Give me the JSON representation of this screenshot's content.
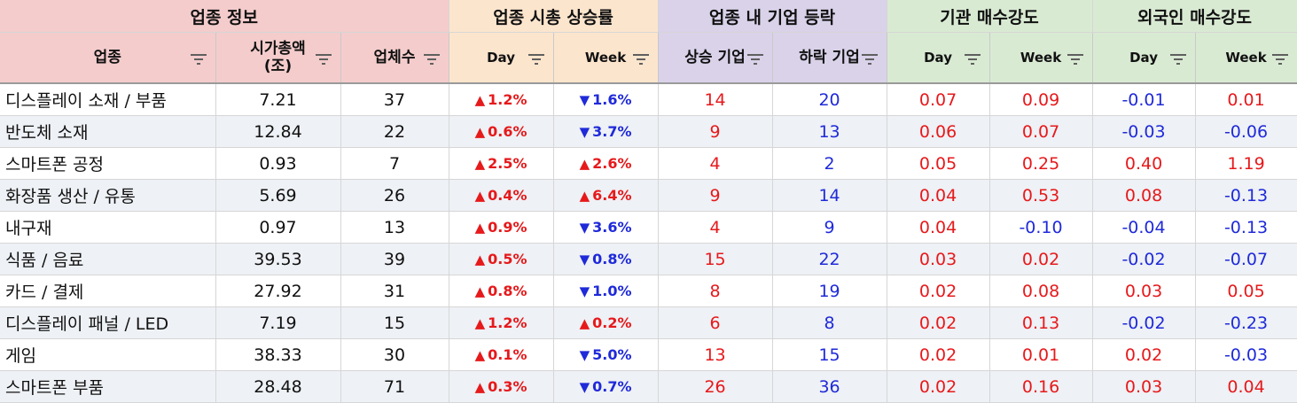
{
  "groups": {
    "info": "업종 정보",
    "mcap": "업종 시총 상승률",
    "count": "업종 내 기업 등락",
    "inst": "기관 매수강도",
    "foreign": "외국인 매수강도"
  },
  "headers": {
    "sector": "업종",
    "mcap_l1": "시가총액",
    "mcap_l2": "(조)",
    "firms": "업체수",
    "mcap_day": "Day",
    "mcap_week": "Week",
    "up_firms": "상승 기업",
    "down_firms": "하락 기업",
    "inst_day": "Day",
    "inst_week": "Week",
    "foreign_day": "Day",
    "foreign_week": "Week"
  },
  "arrows": {
    "up": "▲",
    "down": "▼"
  },
  "colors": {
    "positive": "#e6191b",
    "negative": "#1f2ad9",
    "info_header": "#f4cccc",
    "mcap_header": "#fce5cd",
    "count_header": "#d9d2e9",
    "flow_header": "#d9ead3"
  },
  "rows": [
    {
      "sector": "디스플레이 소재 / 부품",
      "mcap": "7.21",
      "firms": "37",
      "day_dir": "up",
      "day": "1.2%",
      "week_dir": "down",
      "week": "1.6%",
      "up": "14",
      "down": "20",
      "inst_day": "0.07",
      "inst_week": "0.09",
      "for_day": "-0.01",
      "for_week": "0.01"
    },
    {
      "sector": "반도체 소재",
      "mcap": "12.84",
      "firms": "22",
      "day_dir": "up",
      "day": "0.6%",
      "week_dir": "down",
      "week": "3.7%",
      "up": "9",
      "down": "13",
      "inst_day": "0.06",
      "inst_week": "0.07",
      "for_day": "-0.03",
      "for_week": "-0.06"
    },
    {
      "sector": "스마트폰 공정",
      "mcap": "0.93",
      "firms": "7",
      "day_dir": "up",
      "day": "2.5%",
      "week_dir": "up",
      "week": "2.6%",
      "up": "4",
      "down": "2",
      "inst_day": "0.05",
      "inst_week": "0.25",
      "for_day": "0.40",
      "for_week": "1.19"
    },
    {
      "sector": "화장품 생산 / 유통",
      "mcap": "5.69",
      "firms": "26",
      "day_dir": "up",
      "day": "0.4%",
      "week_dir": "up",
      "week": "6.4%",
      "up": "9",
      "down": "14",
      "inst_day": "0.04",
      "inst_week": "0.53",
      "for_day": "0.08",
      "for_week": "-0.13"
    },
    {
      "sector": "내구재",
      "mcap": "0.97",
      "firms": "13",
      "day_dir": "up",
      "day": "0.9%",
      "week_dir": "down",
      "week": "3.6%",
      "up": "4",
      "down": "9",
      "inst_day": "0.04",
      "inst_week": "-0.10",
      "for_day": "-0.04",
      "for_week": "-0.13"
    },
    {
      "sector": "식품 / 음료",
      "mcap": "39.53",
      "firms": "39",
      "day_dir": "up",
      "day": "0.5%",
      "week_dir": "down",
      "week": "0.8%",
      "up": "15",
      "down": "22",
      "inst_day": "0.03",
      "inst_week": "0.02",
      "for_day": "-0.02",
      "for_week": "-0.07"
    },
    {
      "sector": "카드 / 결제",
      "mcap": "27.92",
      "firms": "31",
      "day_dir": "up",
      "day": "0.8%",
      "week_dir": "down",
      "week": "1.0%",
      "up": "8",
      "down": "19",
      "inst_day": "0.02",
      "inst_week": "0.08",
      "for_day": "0.03",
      "for_week": "0.05"
    },
    {
      "sector": "디스플레이 패널 / LED",
      "mcap": "7.19",
      "firms": "15",
      "day_dir": "up",
      "day": "1.2%",
      "week_dir": "up",
      "week": "0.2%",
      "up": "6",
      "down": "8",
      "inst_day": "0.02",
      "inst_week": "0.13",
      "for_day": "-0.02",
      "for_week": "-0.23"
    },
    {
      "sector": "게임",
      "mcap": "38.33",
      "firms": "30",
      "day_dir": "up",
      "day": "0.1%",
      "week_dir": "down",
      "week": "5.0%",
      "up": "13",
      "down": "15",
      "inst_day": "0.02",
      "inst_week": "0.01",
      "for_day": "0.02",
      "for_week": "-0.03"
    },
    {
      "sector": "스마트폰 부품",
      "mcap": "28.48",
      "firms": "71",
      "day_dir": "up",
      "day": "0.3%",
      "week_dir": "down",
      "week": "0.7%",
      "up": "26",
      "down": "36",
      "inst_day": "0.02",
      "inst_week": "0.16",
      "for_day": "0.03",
      "for_week": "0.04"
    }
  ]
}
